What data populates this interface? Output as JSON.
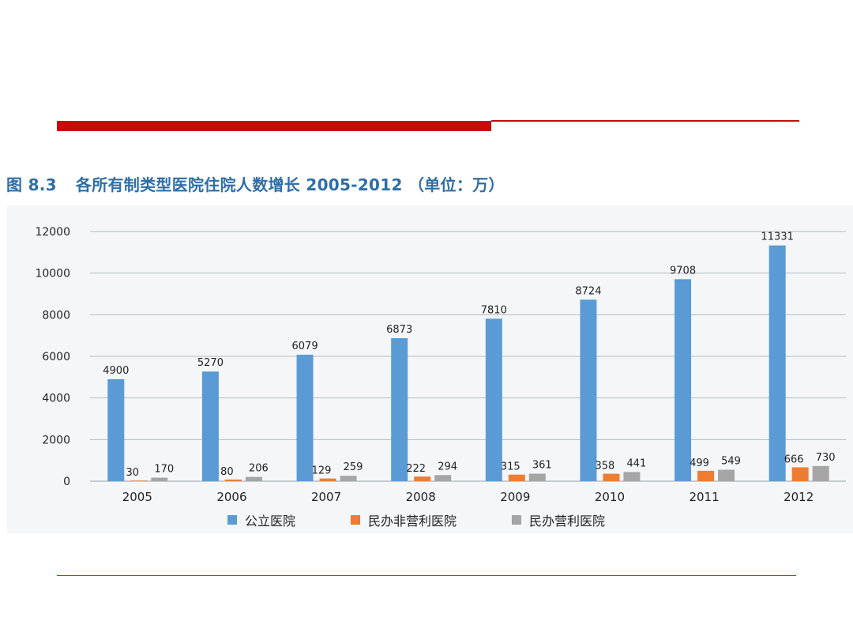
{
  "figure": {
    "label": "图 8.3",
    "title": "各所有制类型医院住院人数增长 2005-2012 （单位：万）"
  },
  "chart_data": {
    "type": "bar",
    "categories": [
      "2005",
      "2006",
      "2007",
      "2008",
      "2009",
      "2010",
      "2011",
      "2012"
    ],
    "series": [
      {
        "name": "公立医院",
        "color": "#5b9bd5",
        "values": [
          4900,
          5270,
          6079,
          6873,
          7810,
          8724,
          9708,
          11331
        ]
      },
      {
        "name": "民办非营利医院",
        "color": "#ed7d31",
        "values": [
          30,
          80,
          129,
          222,
          315,
          358,
          499,
          666
        ]
      },
      {
        "name": "民办营利医院",
        "color": "#a5a5a5",
        "values": [
          170,
          206,
          259,
          294,
          361,
          441,
          549,
          730
        ]
      }
    ],
    "ylim": [
      0,
      12000
    ],
    "yticks": [
      "0",
      "2000",
      "4000",
      "6000",
      "8000",
      "10000",
      "12000"
    ],
    "grid": true,
    "legend_position": "bottom"
  }
}
